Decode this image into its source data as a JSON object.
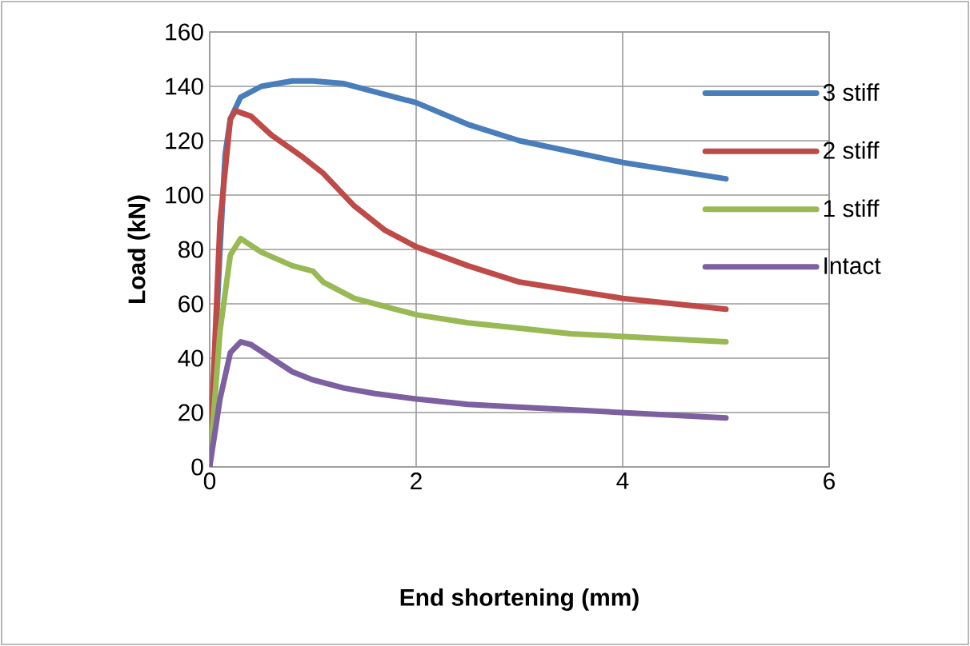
{
  "chart_data": {
    "type": "line",
    "xlabel": "End shortening (mm)",
    "ylabel": "Load (kN)",
    "xlim": [
      0,
      6
    ],
    "xticks": [
      0,
      2,
      4,
      6
    ],
    "ylim": [
      0,
      160
    ],
    "yticks": [
      0,
      20,
      40,
      60,
      80,
      100,
      120,
      140,
      160
    ],
    "grid": true,
    "legend": "right",
    "marker": "none",
    "line_style": "solid",
    "series": [
      {
        "name": "3 stiff",
        "color": "#4a7ebb",
        "x": [
          0,
          0.1,
          0.15,
          0.2,
          0.3,
          0.5,
          0.8,
          1.0,
          1.3,
          1.6,
          2.0,
          2.5,
          3,
          3.5,
          4,
          4.5,
          5
        ],
        "values": [
          0,
          80,
          115,
          128,
          136,
          140,
          142,
          142,
          141,
          138,
          134,
          126,
          120,
          116,
          112,
          109,
          106
        ]
      },
      {
        "name": "2 stiff",
        "color": "#be4b48",
        "x": [
          0,
          0.1,
          0.2,
          0.25,
          0.4,
          0.6,
          0.9,
          1.1,
          1.4,
          1.7,
          2.0,
          2.5,
          3,
          3.5,
          4,
          4.5,
          5
        ],
        "values": [
          0,
          90,
          128,
          131,
          129,
          122,
          114,
          108,
          96,
          87,
          81,
          74,
          68,
          65,
          62,
          60,
          58
        ]
      },
      {
        "name": "1 stiff",
        "color": "#98b954",
        "x": [
          0,
          0.1,
          0.2,
          0.3,
          0.5,
          0.8,
          1.0,
          1.1,
          1.4,
          1.8,
          2.0,
          2.5,
          3,
          3.5,
          4,
          4.5,
          5
        ],
        "values": [
          0,
          50,
          78,
          84,
          79,
          74,
          72,
          68,
          62,
          58,
          56,
          53,
          51,
          49,
          48,
          47,
          46
        ]
      },
      {
        "name": "Intact",
        "color": "#7d60a0",
        "x": [
          0,
          0.1,
          0.2,
          0.3,
          0.4,
          0.6,
          0.8,
          1.0,
          1.3,
          1.6,
          2.0,
          2.5,
          3,
          3.5,
          4,
          4.5,
          5
        ],
        "values": [
          0,
          25,
          42,
          46,
          45,
          40,
          35,
          32,
          29,
          27,
          25,
          23,
          22,
          21,
          20,
          19,
          18
        ]
      }
    ]
  }
}
